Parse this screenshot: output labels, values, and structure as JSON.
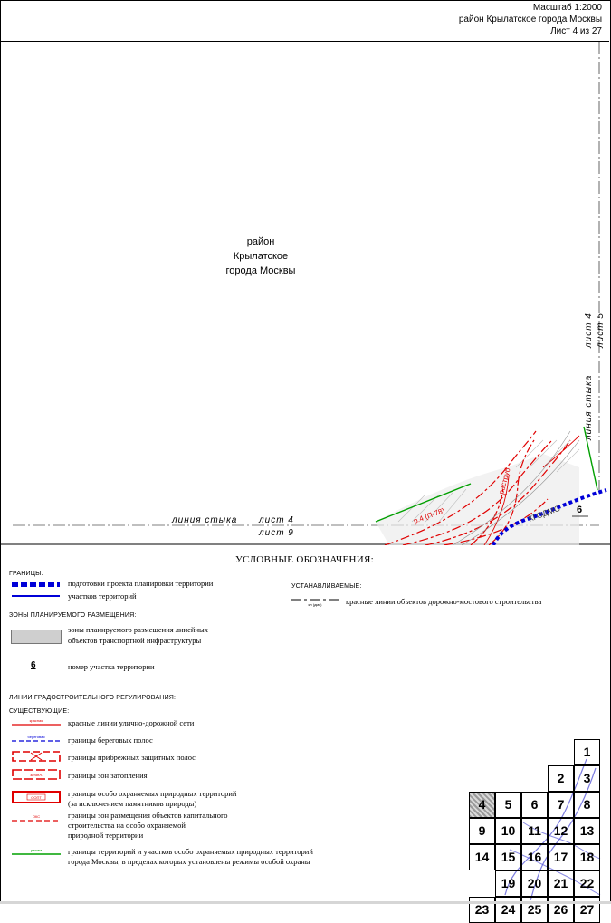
{
  "header": {
    "scale": "Масштаб 1:2000",
    "district": "район Крылатское города Москвы",
    "sheet": "Лист 4 из 27"
  },
  "map": {
    "district_label": [
      "район",
      "Крылатское",
      "города Москвы"
    ],
    "join_line_bottom": {
      "prefix": "линия  стыка",
      "sheet_a": "лист  4",
      "sheet_b": "лист  9"
    },
    "join_line_right": {
      "prefix": "линия  стыка",
      "sheet_a": "лист  4",
      "sheet_b": "лист  5"
    },
    "labels": {
      "raustrub": "раструб",
      "river": "р.4 (П-78)",
      "kgodms": "КГОДМС",
      "parcel_number": "6"
    }
  },
  "legend": {
    "title": "УСЛОВНЫЕ ОБОЗНАЧЕНИЯ:",
    "sections": {
      "borders": "ГРАНИЦЫ:",
      "planned_zones": "ЗОНЫ ПЛАНИРУЕМОГО РАЗМЕЩЕНИЯ:",
      "regulation_lines": "ЛИНИИ ГРАДОСТРОИТЕЛЬНОГО РЕГУЛИРОВАНИЯ:",
      "existing": "СУЩЕСТВУЮЩИЕ:",
      "established": "УСТАНАВЛИВАЕМЫЕ:"
    },
    "items": {
      "planning_project": "подготовки проекта планировки территории",
      "territory_parcels": "участков территорий",
      "planned_linear": [
        "зоны планируемого размещения линейных",
        "объектов транспортной инфраструктуры"
      ],
      "parcel_number_sample": "6",
      "parcel_number": "номер участка территории",
      "red_lines": "красные линии улично-дорожной сети",
      "shore_strips": "границы береговых полос",
      "protective_strips": "границы прибрежных защитных полос",
      "flood_zones": "границы зон затопления",
      "protected_areas": [
        "границы особо охраняемых природных территорий",
        "(за исключением памятников природы)"
      ],
      "capital_construction": [
        "границы зон размещения объектов капитального",
        "строительства на особо охраняемой",
        "природной территории"
      ],
      "special_protection": [
        "границы территорий и участков особо охраняемых природных территорий",
        "города Москвы, в пределах которых установлены режимы особой охраны"
      ],
      "road_bridge_red_lines": "красные линии объектов дорожно-мостового строительства"
    },
    "symbol_tags": {
      "red_lines": "красная",
      "shore_strips": "береговая",
      "flood": "затопл.",
      "protected": "ООПТ",
      "capital": "ОКС",
      "special": "режим",
      "established": "кл (дмс)"
    }
  },
  "sheet_index": {
    "cells": [
      "1",
      "2",
      "3",
      "4",
      "5",
      "6",
      "7",
      "8",
      "9",
      "10",
      "11",
      "12",
      "13",
      "14",
      "15",
      "16",
      "17",
      "18",
      "19",
      "20",
      "21",
      "22",
      "23",
      "24",
      "25",
      "26",
      "27"
    ],
    "current": "4"
  },
  "colors": {
    "red_line": "#e00000",
    "blue_line": "#0000d8",
    "green_line": "#00a000",
    "gray_zone": "#cfcfcf",
    "route_blue": "#5a5ad8"
  }
}
